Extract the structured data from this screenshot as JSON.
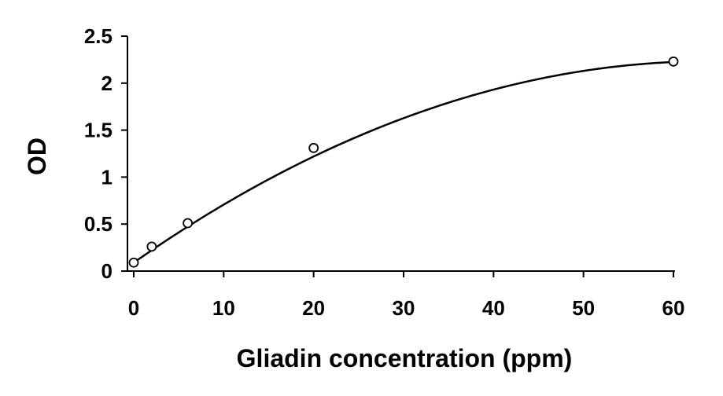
{
  "chart_data": {
    "type": "scatter",
    "title": "",
    "xlabel": "Gliadin concentration (ppm)",
    "ylabel": "OD",
    "xlim": [
      0,
      60
    ],
    "ylim": [
      0,
      2.5
    ],
    "x_ticks": [
      0,
      10,
      20,
      30,
      40,
      50,
      60
    ],
    "x_tick_labels": [
      "0",
      "10",
      "20",
      "30",
      "40",
      "50",
      "60"
    ],
    "y_ticks": [
      0,
      0.5,
      1,
      1.5,
      2,
      2.5
    ],
    "y_tick_labels": [
      "0",
      "0.5",
      "1",
      "1.5",
      "2",
      "2.5"
    ],
    "grid": false,
    "legend": "none",
    "series": [
      {
        "marker": "open-circle",
        "x": [
          0,
          2,
          6,
          20,
          60
        ],
        "y": [
          0.09,
          0.26,
          0.51,
          1.31,
          2.23
        ]
      }
    ],
    "fit_curve": {
      "type": "polynomial",
      "degree": 2,
      "coefficients": [
        0.09,
        0.0669,
        -0.000522
      ],
      "x_range": [
        0,
        60
      ]
    },
    "colors": {
      "axis": "#000000",
      "marker": "#000000",
      "curve": "#000000"
    }
  }
}
